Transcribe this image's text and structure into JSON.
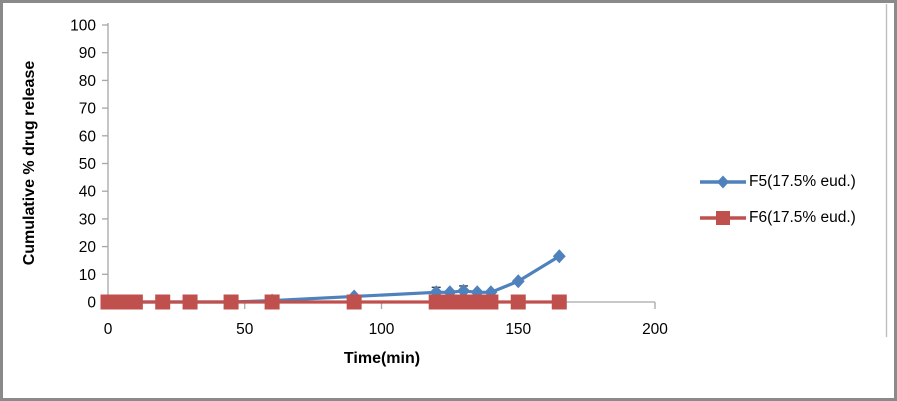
{
  "frame": {
    "border_color": "#8a8a8a",
    "background": "#ffffff"
  },
  "chart_data": {
    "type": "line",
    "title": "",
    "xlabel": "Time(min)",
    "ylabel": "Cumulative % drug release",
    "xlim": [
      0,
      200
    ],
    "ylim": [
      0,
      100
    ],
    "x_ticks": [
      0,
      50,
      100,
      150,
      200
    ],
    "y_ticks": [
      0,
      10,
      20,
      30,
      40,
      50,
      60,
      70,
      80,
      90,
      100
    ],
    "grid": false,
    "legend_position": "right",
    "axis_color": "#a6a6a6",
    "error_bar_color": "#404040",
    "chart_border_color": "#bfbfbf",
    "x": [
      0,
      5,
      10,
      20,
      30,
      45,
      60,
      90,
      120,
      125,
      130,
      135,
      140,
      150,
      165
    ],
    "series": [
      {
        "name": "F5(17.5% eud.)",
        "color": "#4f81bd",
        "marker": "diamond",
        "values": [
          0,
          0,
          0,
          0,
          0,
          0,
          0.5,
          2,
          3.5,
          3.5,
          4,
          3.5,
          3.5,
          7.5,
          16.5
        ],
        "errors": [
          0,
          0,
          0,
          0,
          0,
          0,
          0,
          0,
          1.8,
          0,
          1.8,
          0,
          0,
          0,
          0
        ]
      },
      {
        "name": "F6(17.5% eud.)",
        "color": "#c0504d",
        "marker": "square",
        "values": [
          0,
          0,
          0,
          0,
          0,
          0,
          0,
          0,
          0,
          0,
          0,
          0,
          0,
          0,
          0
        ],
        "errors": [
          0,
          0,
          0,
          0,
          0,
          0,
          0,
          0,
          0,
          0,
          0,
          0,
          0,
          0,
          0
        ]
      }
    ]
  }
}
